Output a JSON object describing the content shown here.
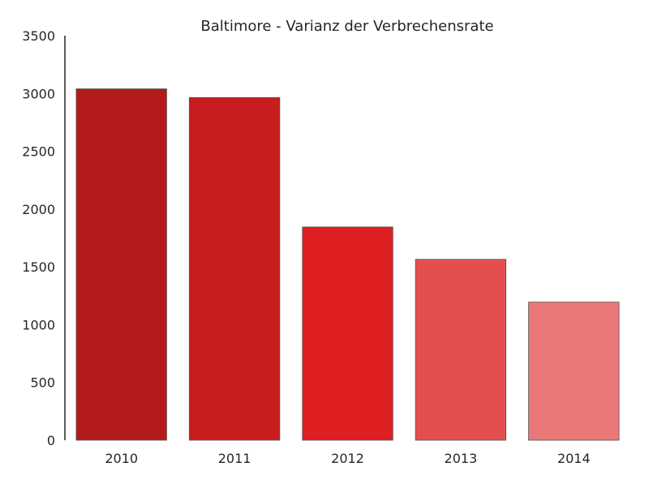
{
  "chart_data": {
    "type": "bar",
    "title": "Baltimore - Varianz der Verbrechensrate",
    "xlabel": "",
    "ylabel": "",
    "categories": [
      "2010",
      "2011",
      "2012",
      "2013",
      "2014"
    ],
    "values": [
      3040,
      2965,
      1845,
      1565,
      1195
    ],
    "colors": [
      "#b31a1a",
      "#c81d1e",
      "#de2023",
      "#e44e4e",
      "#eb7878"
    ],
    "ylim": [
      0,
      3500
    ],
    "yticks": [
      "0",
      "500",
      "1000",
      "1500",
      "2000",
      "2500",
      "3000",
      "3500"
    ],
    "grid": false,
    "legend": "none"
  }
}
